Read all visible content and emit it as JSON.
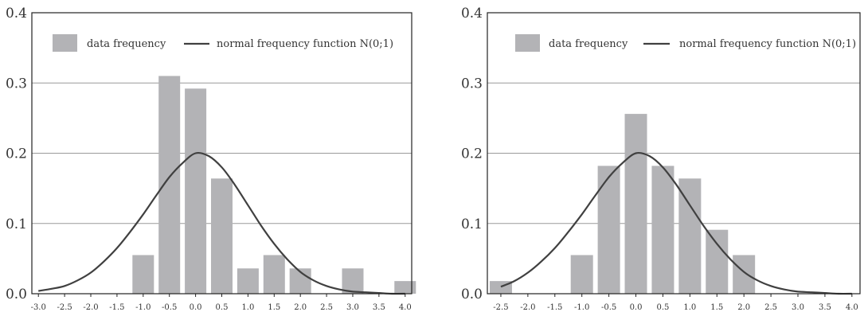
{
  "chart_data": [
    {
      "type": "bar",
      "title": "",
      "xlabel": "",
      "ylabel": "",
      "x_range": [
        -3.125,
        4.125
      ],
      "ylim": [
        0,
        0.4
      ],
      "yticks": [
        0.0,
        0.1,
        0.2,
        0.3,
        0.4
      ],
      "ytick_labels": [
        "0.0",
        "0.1",
        "0.2",
        "0.3",
        "0.4"
      ],
      "xticks": [
        -3.0,
        -2.5,
        -2.0,
        -1.5,
        -1.0,
        -0.5,
        0.0,
        0.5,
        1.0,
        1.5,
        2.0,
        2.5,
        3.0,
        3.5,
        4.0
      ],
      "xtick_labels": [
        "-3.0",
        "-2.5",
        "-2.0",
        "-1.5",
        "-1.0",
        "-0.5",
        "0.0",
        "0.5",
        "1.0",
        "1.5",
        "2.0",
        "2.5",
        "3.0",
        "3.5",
        "4.0"
      ],
      "grid": "horizontal",
      "legend_position": "top",
      "legend": [
        {
          "label": "data frequency",
          "kind": "bar"
        },
        {
          "label": "normal frequency function N(0;1)",
          "kind": "line"
        }
      ],
      "colors": {
        "bar": "#b3b3b6",
        "line": "#404040",
        "grid": "#9a9a9a"
      },
      "bars": {
        "x": [
          -1.0,
          -0.5,
          0.0,
          0.5,
          1.0,
          1.5,
          2.0,
          3.0,
          4.0
        ],
        "values": [
          0.055,
          0.31,
          0.292,
          0.164,
          0.036,
          0.055,
          0.036,
          0.036,
          0.018
        ]
      },
      "curve": {
        "x": [
          -3.0,
          -2.75,
          -2.5,
          -2.25,
          -2.0,
          -1.75,
          -1.5,
          -1.25,
          -1.0,
          -0.75,
          -0.5,
          -0.25,
          0.0,
          0.25,
          0.5,
          0.75,
          1.0,
          1.25,
          1.5,
          1.75,
          2.0,
          2.25,
          2.5,
          2.75,
          3.0,
          3.25,
          3.5,
          3.75,
          4.0
        ],
        "y": [
          0.004,
          0.007,
          0.011,
          0.019,
          0.03,
          0.046,
          0.065,
          0.088,
          0.113,
          0.14,
          0.166,
          0.186,
          0.2,
          0.196,
          0.18,
          0.155,
          0.126,
          0.097,
          0.071,
          0.049,
          0.031,
          0.019,
          0.011,
          0.006,
          0.003,
          0.002,
          0.001,
          0.0,
          0.0
        ]
      }
    },
    {
      "type": "bar",
      "title": "",
      "xlabel": "",
      "ylabel": "",
      "x_range": [
        -2.75,
        4.15
      ],
      "ylim": [
        0,
        0.4
      ],
      "yticks": [
        0.0,
        0.1,
        0.2,
        0.3,
        0.4
      ],
      "ytick_labels": [
        "0.0",
        "0.1",
        "0.2",
        "0.3",
        "0.4"
      ],
      "xticks": [
        -2.5,
        -2.0,
        -1.5,
        -1.0,
        -0.5,
        0.0,
        0.5,
        1.0,
        1.5,
        2.0,
        2.5,
        3.0,
        3.5,
        4.0
      ],
      "xtick_labels": [
        "-2.5",
        "-2.0",
        "-1.5",
        "-1.0",
        "-0.5",
        "0.0",
        "0.5",
        "1.0",
        "1.5",
        "2.0",
        "2.5",
        "3.0",
        "3.5",
        "4.0"
      ],
      "grid": "horizontal",
      "legend_position": "top",
      "legend": [
        {
          "label": "data frequency",
          "kind": "bar"
        },
        {
          "label": "normal frequency function N(0;1)",
          "kind": "line"
        }
      ],
      "colors": {
        "bar": "#b3b3b6",
        "line": "#404040",
        "grid": "#9a9a9a"
      },
      "bars": {
        "x": [
          -2.5,
          -1.0,
          -0.5,
          0.0,
          0.5,
          1.0,
          1.5,
          2.0
        ],
        "values": [
          0.018,
          0.055,
          0.182,
          0.256,
          0.182,
          0.164,
          0.091,
          0.055
        ]
      },
      "curve": {
        "x": [
          -2.5,
          -2.25,
          -2.0,
          -1.75,
          -1.5,
          -1.25,
          -1.0,
          -0.75,
          -0.5,
          -0.25,
          0.0,
          0.25,
          0.5,
          0.75,
          1.0,
          1.25,
          1.5,
          1.75,
          2.0,
          2.25,
          2.5,
          2.75,
          3.0,
          3.25,
          3.5,
          3.75,
          4.0
        ],
        "y": [
          0.01,
          0.018,
          0.03,
          0.046,
          0.065,
          0.088,
          0.113,
          0.14,
          0.166,
          0.186,
          0.2,
          0.196,
          0.18,
          0.155,
          0.126,
          0.097,
          0.071,
          0.049,
          0.031,
          0.019,
          0.011,
          0.006,
          0.003,
          0.002,
          0.001,
          0.0,
          0.0
        ]
      }
    }
  ]
}
